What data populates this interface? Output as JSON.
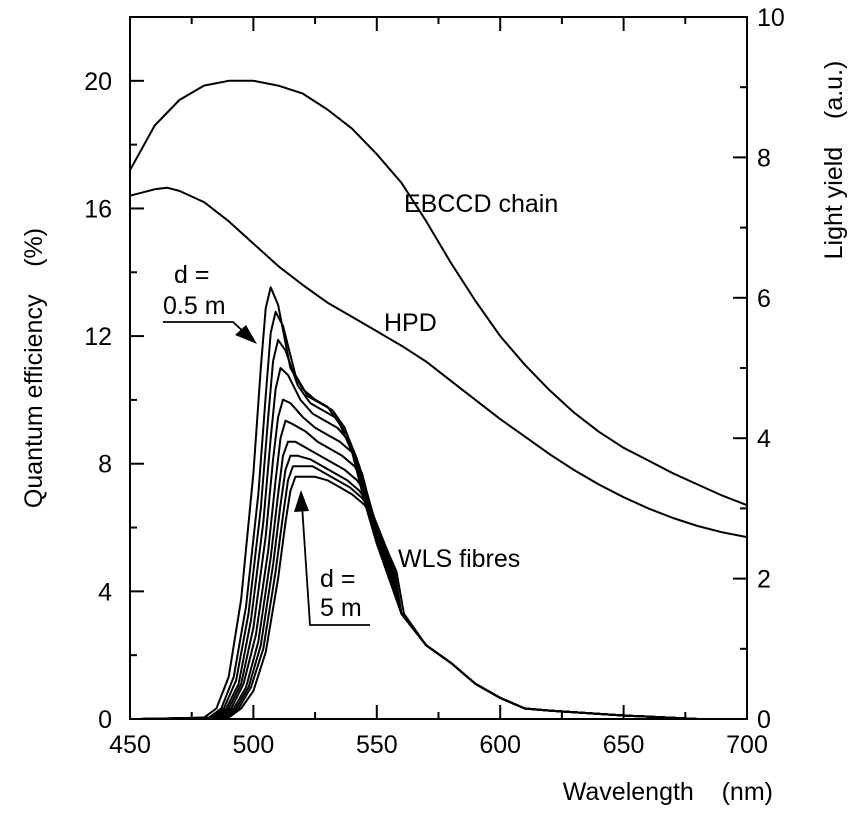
{
  "chart_data": {
    "type": "line",
    "title": "",
    "xlabel": "Wavelength    (nm)",
    "ylabel_left": "Quantum efficiency    (%)",
    "ylabel_right": "Light yield    (a.u.)",
    "xlim": [
      450,
      700
    ],
    "ylim_left": [
      0,
      22
    ],
    "ylim_right": [
      0,
      10
    ],
    "x_ticks": [
      "450",
      "500",
      "550",
      "600",
      "650",
      "700"
    ],
    "y_ticks_left": [
      "0",
      "4",
      "8",
      "12",
      "16",
      "20"
    ],
    "y_ticks_right": [
      "0",
      "2",
      "4",
      "6",
      "8",
      "10"
    ],
    "grid": false,
    "annotations": {
      "ebccd": "EBCCD chain",
      "hpd": "HPD",
      "wls": "WLS fibres",
      "d_top_line1": "d =",
      "d_top_line2": "0.5 m",
      "d_bottom_line1": "d =",
      "d_bottom_line2": "5 m"
    },
    "series": [
      {
        "name": "EBCCD chain",
        "axis": "left",
        "x": [
          450,
          460,
          470,
          480,
          490,
          500,
          510,
          520,
          530,
          540,
          550,
          560,
          570,
          580,
          590,
          600,
          610,
          620,
          630,
          640,
          650,
          660,
          670,
          680,
          690,
          700
        ],
        "values": [
          17.2,
          18.6,
          19.4,
          19.85,
          20.0,
          20.0,
          19.85,
          19.6,
          19.1,
          18.5,
          17.7,
          16.8,
          15.6,
          14.3,
          13.1,
          12.0,
          11.1,
          10.3,
          9.6,
          9.0,
          8.5,
          8.1,
          7.7,
          7.35,
          7.0,
          6.7
        ]
      },
      {
        "name": "HPD",
        "axis": "left",
        "x": [
          450,
          460,
          465,
          470,
          480,
          490,
          500,
          510,
          520,
          530,
          540,
          550,
          560,
          570,
          580,
          590,
          600,
          610,
          620,
          630,
          640,
          650,
          660,
          670,
          680,
          690,
          700
        ],
        "values": [
          16.4,
          16.6,
          16.65,
          16.55,
          16.2,
          15.6,
          14.9,
          14.2,
          13.6,
          13.05,
          12.6,
          12.15,
          11.7,
          11.2,
          10.6,
          10.0,
          9.4,
          8.85,
          8.3,
          7.8,
          7.35,
          6.95,
          6.6,
          6.3,
          6.05,
          5.85,
          5.7
        ]
      },
      {
        "name": "",
        "axis": "right",
        "x": [
          454,
          480,
          485,
          490,
          495,
          500,
          503,
          505,
          507,
          510,
          515,
          520,
          525,
          530,
          535,
          540,
          545,
          550,
          560,
          570,
          580,
          590,
          600,
          610,
          620,
          650,
          680
        ],
        "values": [
          0,
          0.02,
          0.15,
          0.6,
          1.7,
          3.5,
          5.0,
          5.85,
          6.15,
          5.9,
          5.0,
          4.7,
          4.55,
          4.45,
          4.2,
          3.8,
          3.1,
          2.5,
          1.5,
          1.05,
          0.8,
          0.5,
          0.3,
          0.15,
          0.12,
          0.05,
          0
        ]
      },
      {
        "name": "",
        "axis": "right",
        "x": [
          454,
          482,
          487,
          492,
          497,
          502,
          505,
          507,
          509,
          512,
          517,
          522,
          527,
          532,
          537,
          541,
          545,
          550,
          560,
          570,
          580,
          590,
          600,
          610,
          620,
          650,
          680
        ],
        "values": [
          0,
          0.02,
          0.15,
          0.6,
          1.6,
          3.2,
          4.6,
          5.5,
          5.8,
          5.6,
          4.9,
          4.6,
          4.5,
          4.4,
          4.15,
          3.75,
          3.1,
          2.5,
          1.5,
          1.05,
          0.8,
          0.5,
          0.3,
          0.15,
          0.12,
          0.05,
          0
        ]
      },
      {
        "name": "",
        "axis": "right",
        "x": [
          454,
          483,
          488,
          493,
          498,
          503,
          506,
          508,
          510,
          513,
          518,
          523,
          528,
          533,
          538,
          542,
          546,
          551,
          560,
          570,
          580,
          590,
          600,
          610,
          620,
          650,
          680
        ],
        "values": [
          0,
          0.02,
          0.15,
          0.55,
          1.5,
          3.0,
          4.3,
          5.1,
          5.4,
          5.25,
          4.75,
          4.5,
          4.4,
          4.3,
          4.05,
          3.7,
          3.05,
          2.45,
          1.5,
          1.05,
          0.8,
          0.5,
          0.3,
          0.15,
          0.12,
          0.05,
          0
        ]
      },
      {
        "name": "",
        "axis": "right",
        "x": [
          454,
          484,
          489,
          494,
          499,
          504,
          507,
          509,
          511,
          514,
          519,
          524,
          529,
          534,
          539,
          543,
          547,
          552,
          560,
          570,
          580,
          590,
          600,
          610,
          620,
          650,
          680
        ],
        "values": [
          0,
          0.02,
          0.15,
          0.5,
          1.4,
          2.8,
          4.0,
          4.7,
          5.0,
          4.9,
          4.55,
          4.35,
          4.25,
          4.15,
          3.95,
          3.6,
          3.0,
          2.4,
          1.5,
          1.05,
          0.8,
          0.5,
          0.3,
          0.15,
          0.12,
          0.05,
          0
        ]
      },
      {
        "name": "",
        "axis": "right",
        "x": [
          454,
          485,
          490,
          495,
          500,
          505,
          508,
          510,
          512,
          515,
          520,
          525,
          530,
          535,
          540,
          544,
          548,
          553,
          560,
          570,
          580,
          590,
          600,
          610,
          620,
          650,
          680
        ],
        "values": [
          0,
          0.02,
          0.15,
          0.5,
          1.3,
          2.6,
          3.7,
          4.3,
          4.55,
          4.5,
          4.3,
          4.15,
          4.05,
          3.95,
          3.8,
          3.5,
          2.95,
          2.35,
          1.5,
          1.05,
          0.8,
          0.5,
          0.3,
          0.15,
          0.12,
          0.05,
          0
        ]
      },
      {
        "name": "",
        "axis": "right",
        "x": [
          454,
          486,
          491,
          496,
          501,
          506,
          509,
          511,
          513,
          516,
          521,
          526,
          531,
          536,
          541,
          545,
          549,
          554,
          560,
          570,
          580,
          590,
          600,
          610,
          620,
          650,
          680
        ],
        "values": [
          0,
          0.02,
          0.15,
          0.5,
          1.2,
          2.4,
          3.4,
          4.0,
          4.25,
          4.2,
          4.1,
          3.95,
          3.85,
          3.75,
          3.6,
          3.35,
          2.85,
          2.3,
          1.5,
          1.05,
          0.8,
          0.5,
          0.3,
          0.15,
          0.12,
          0.05,
          0
        ]
      },
      {
        "name": "",
        "axis": "right",
        "x": [
          454,
          487,
          492,
          497,
          502,
          507,
          510,
          512,
          514,
          517,
          522,
          527,
          532,
          537,
          542,
          546,
          550,
          555,
          560,
          570,
          580,
          590,
          600,
          610,
          620,
          650,
          680
        ],
        "values": [
          0,
          0.02,
          0.15,
          0.45,
          1.1,
          2.3,
          3.2,
          3.75,
          3.95,
          3.95,
          3.85,
          3.75,
          3.65,
          3.55,
          3.4,
          3.2,
          2.75,
          2.25,
          1.5,
          1.05,
          0.8,
          0.5,
          0.3,
          0.15,
          0.12,
          0.05,
          0
        ]
      },
      {
        "name": "",
        "axis": "right",
        "x": [
          454,
          488,
          493,
          498,
          503,
          508,
          511,
          513,
          515,
          518,
          523,
          528,
          533,
          538,
          543,
          547,
          551,
          556,
          560,
          570,
          580,
          590,
          600,
          610,
          620,
          650,
          680
        ],
        "values": [
          0,
          0.02,
          0.15,
          0.45,
          1.05,
          2.2,
          3.05,
          3.55,
          3.75,
          3.75,
          3.7,
          3.6,
          3.5,
          3.4,
          3.25,
          3.05,
          2.65,
          2.2,
          1.5,
          1.05,
          0.8,
          0.5,
          0.3,
          0.15,
          0.12,
          0.05,
          0
        ]
      },
      {
        "name": "",
        "axis": "right",
        "x": [
          454,
          489,
          494,
          499,
          504,
          509,
          512,
          514,
          516,
          519,
          524,
          529,
          534,
          539,
          544,
          548,
          552,
          557,
          560,
          570,
          580,
          590,
          600,
          610,
          620,
          650,
          680
        ],
        "values": [
          0,
          0.02,
          0.15,
          0.45,
          1.0,
          2.1,
          2.9,
          3.4,
          3.6,
          3.6,
          3.6,
          3.5,
          3.4,
          3.3,
          3.15,
          2.95,
          2.6,
          2.15,
          1.5,
          1.05,
          0.8,
          0.5,
          0.3,
          0.15,
          0.12,
          0.05,
          0
        ]
      },
      {
        "name": "",
        "axis": "right",
        "x": [
          454,
          490,
          495,
          500,
          505,
          510,
          513,
          515,
          517,
          520,
          525,
          530,
          535,
          540,
          545,
          549,
          553,
          558,
          561,
          570,
          580,
          590,
          600,
          610,
          620,
          650,
          680
        ],
        "values": [
          0,
          0.02,
          0.15,
          0.4,
          0.95,
          2.0,
          2.8,
          3.25,
          3.45,
          3.45,
          3.45,
          3.4,
          3.3,
          3.2,
          3.05,
          2.85,
          2.5,
          2.1,
          1.5,
          1.05,
          0.8,
          0.5,
          0.3,
          0.15,
          0.12,
          0.05,
          0
        ]
      }
    ]
  }
}
